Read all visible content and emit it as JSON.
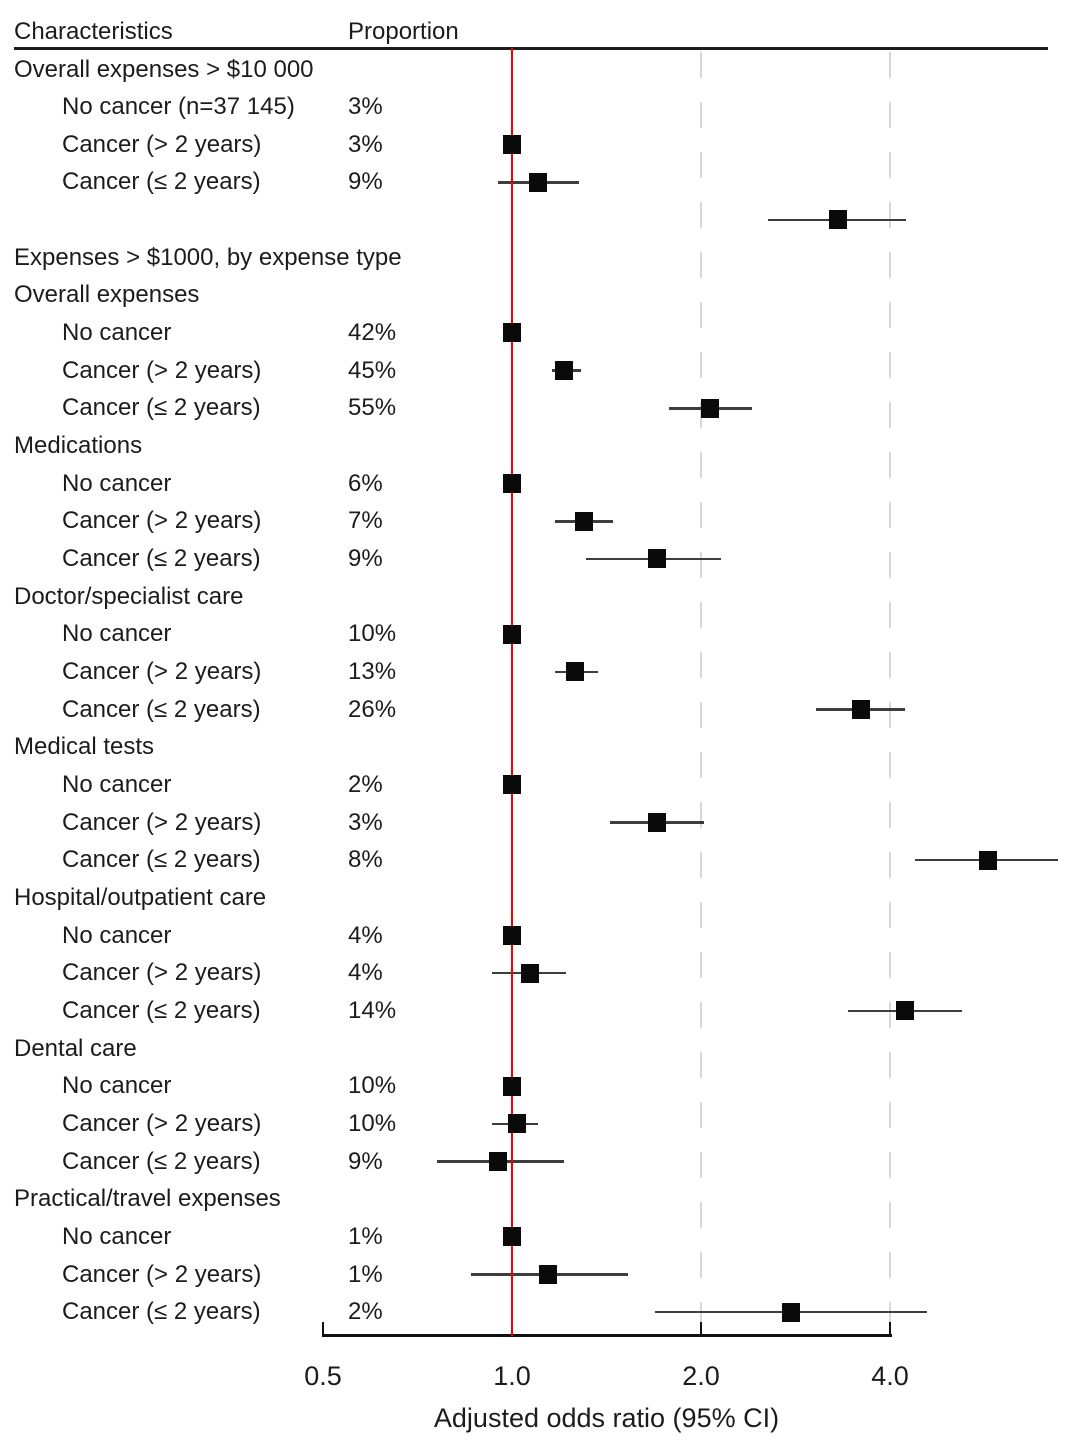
{
  "table_header": {
    "characteristics": "Characteristics",
    "proportion": "Proportion"
  },
  "axis": {
    "label": "Adjusted odds ratio (95% CI)",
    "ticks": [
      "0.5",
      "1.0",
      "2.0",
      "4.0"
    ],
    "tick_values": [
      0.5,
      1.0,
      2.0,
      4.0
    ],
    "scale": "log2",
    "reference_line": 1.0,
    "gridlines": [
      2.0,
      4.0
    ]
  },
  "colors": {
    "reference_line": "#f10000",
    "gridline": "#d8d8d8",
    "marker": "#0a0a0a",
    "ci_line": "#3d3d3d",
    "text": "#1c1c1c",
    "rule": "#1c1c1c"
  },
  "chart_data": {
    "type": "forest",
    "xlabel": "Adjusted odds ratio (95% CI)",
    "x_ticks": [
      0.5,
      1.0,
      2.0,
      4.0
    ],
    "x_scale": "log2",
    "reference_or": 1.0,
    "note": "Squares are adjusted odds ratios with 95% CI horizontal lines; 'No cancer' rows are the reference (OR = 1.0). In the first group the markers render one row slot below their labels, as in the source figure.",
    "rows": [
      {
        "type": "section",
        "label": "Overall expenses > $10 000",
        "proportion": "",
        "or": null,
        "lo": null,
        "hi": null
      },
      {
        "type": "item",
        "label": "No cancer (n=37 145)",
        "proportion": "3%",
        "or": null,
        "lo": null,
        "hi": null
      },
      {
        "type": "item",
        "label": "Cancer (> 2 years)",
        "proportion": "3%",
        "or": 1.0,
        "lo": null,
        "hi": null
      },
      {
        "type": "item",
        "label": "Cancer (≤ 2 years)",
        "proportion": "9%",
        "or": 1.1,
        "lo": 0.95,
        "hi": 1.28
      },
      {
        "type": "spacer",
        "label": "",
        "proportion": "",
        "or": 3.31,
        "lo": 2.56,
        "hi": 4.24
      },
      {
        "type": "section",
        "label": "Expenses > $1000, by expense type",
        "proportion": "",
        "or": null,
        "lo": null,
        "hi": null
      },
      {
        "type": "section",
        "label": "Overall expenses",
        "proportion": "",
        "or": null,
        "lo": null,
        "hi": null
      },
      {
        "type": "item",
        "label": "No cancer",
        "proportion": "42%",
        "or": 1.0,
        "lo": null,
        "hi": null
      },
      {
        "type": "item",
        "label": "Cancer (> 2 years)",
        "proportion": "45%",
        "or": 1.21,
        "lo": 1.16,
        "hi": 1.29
      },
      {
        "type": "item",
        "label": "Cancer (≤ 2 years)",
        "proportion": "55%",
        "or": 2.07,
        "lo": 1.78,
        "hi": 2.41
      },
      {
        "type": "section",
        "label": "Medications",
        "proportion": "",
        "or": null,
        "lo": null,
        "hi": null
      },
      {
        "type": "item",
        "label": "No cancer",
        "proportion": "6%",
        "or": 1.0,
        "lo": null,
        "hi": null
      },
      {
        "type": "item",
        "label": "Cancer (> 2 years)",
        "proportion": "7%",
        "or": 1.3,
        "lo": 1.17,
        "hi": 1.45
      },
      {
        "type": "item",
        "label": "Cancer (≤ 2 years)",
        "proportion": "9%",
        "or": 1.7,
        "lo": 1.31,
        "hi": 2.15
      },
      {
        "type": "section",
        "label": "Doctor/specialist care",
        "proportion": "",
        "or": null,
        "lo": null,
        "hi": null
      },
      {
        "type": "item",
        "label": "No cancer",
        "proportion": "10%",
        "or": 1.0,
        "lo": null,
        "hi": null
      },
      {
        "type": "item",
        "label": "Cancer (> 2 years)",
        "proportion": "13%",
        "or": 1.26,
        "lo": 1.17,
        "hi": 1.37
      },
      {
        "type": "item",
        "label": "Cancer (≤ 2 years)",
        "proportion": "26%",
        "or": 3.6,
        "lo": 3.05,
        "hi": 4.23
      },
      {
        "type": "section",
        "label": "Medical tests",
        "proportion": "",
        "or": null,
        "lo": null,
        "hi": null
      },
      {
        "type": "item",
        "label": "No cancer",
        "proportion": "2%",
        "or": 1.0,
        "lo": null,
        "hi": null
      },
      {
        "type": "item",
        "label": "Cancer (> 2 years)",
        "proportion": "3%",
        "or": 1.7,
        "lo": 1.43,
        "hi": 2.02
      },
      {
        "type": "item",
        "label": "Cancer (≤ 2 years)",
        "proportion": "8%",
        "or": 5.73,
        "lo": 4.38,
        "hi": 7.41
      },
      {
        "type": "section",
        "label": "Hospital/outpatient care",
        "proportion": "",
        "or": null,
        "lo": null,
        "hi": null
      },
      {
        "type": "item",
        "label": "No cancer",
        "proportion": "4%",
        "or": 1.0,
        "lo": null,
        "hi": null
      },
      {
        "type": "item",
        "label": "Cancer (> 2 years)",
        "proportion": "4%",
        "or": 1.07,
        "lo": 0.93,
        "hi": 1.22
      },
      {
        "type": "item",
        "label": "Cancer (≤ 2 years)",
        "proportion": "14%",
        "or": 4.22,
        "lo": 3.43,
        "hi": 5.21
      },
      {
        "type": "section",
        "label": "Dental care",
        "proportion": "",
        "or": null,
        "lo": null,
        "hi": null
      },
      {
        "type": "item",
        "label": "No cancer",
        "proportion": "10%",
        "or": 1.0,
        "lo": null,
        "hi": null
      },
      {
        "type": "item",
        "label": "Cancer (> 2 years)",
        "proportion": "10%",
        "or": 1.02,
        "lo": 0.93,
        "hi": 1.1
      },
      {
        "type": "item",
        "label": "Cancer (≤ 2 years)",
        "proportion": "9%",
        "or": 0.95,
        "lo": 0.76,
        "hi": 1.21
      },
      {
        "type": "section",
        "label": "Practical/travel expenses",
        "proportion": "",
        "or": null,
        "lo": null,
        "hi": null
      },
      {
        "type": "item",
        "label": "No cancer",
        "proportion": "1%",
        "or": 1.0,
        "lo": null,
        "hi": null
      },
      {
        "type": "item",
        "label": "Cancer (> 2 years)",
        "proportion": "1%",
        "or": 1.14,
        "lo": 0.86,
        "hi": 1.53
      },
      {
        "type": "item",
        "label": "Cancer (≤ 2 years)",
        "proportion": "2%",
        "or": 2.78,
        "lo": 1.69,
        "hi": 4.58
      }
    ]
  }
}
